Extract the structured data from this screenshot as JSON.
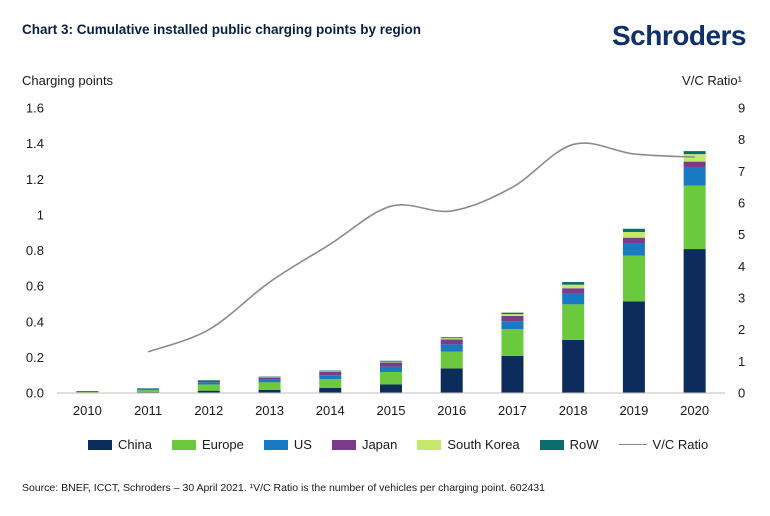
{
  "header": {
    "title": "Chart 3: Cumulative installed public charging points by region",
    "brand": "Schroders"
  },
  "source": "Source: BNEF, ICCT, Schroders – 30 April 2021. ¹V/C Ratio is the number of vehicles per charging point. 602431",
  "chart_data": {
    "type": "bar",
    "stacked": true,
    "ylabel": "Charging points",
    "y2label": "V/C Ratio¹",
    "ylim": [
      0,
      1.6
    ],
    "y2lim": [
      0,
      9
    ],
    "y_ticks": [
      "0.0",
      "0.2",
      "0.4",
      "0.6",
      "0.8",
      "1",
      "1.2",
      "1.4",
      "1.6"
    ],
    "y2_ticks": [
      "0",
      "1",
      "2",
      "3",
      "4",
      "5",
      "6",
      "7",
      "8",
      "9"
    ],
    "categories": [
      "2010",
      "2011",
      "2012",
      "2013",
      "2014",
      "2015",
      "2016",
      "2017",
      "2018",
      "2019",
      "2020"
    ],
    "series": [
      {
        "name": "China",
        "color": "#0c2c5c",
        "values": [
          0.002,
          0.005,
          0.013,
          0.018,
          0.028,
          0.048,
          0.138,
          0.208,
          0.298,
          0.514,
          0.808
        ]
      },
      {
        "name": "Europe",
        "color": "#6ac93c",
        "values": [
          0.006,
          0.011,
          0.035,
          0.042,
          0.05,
          0.07,
          0.095,
          0.15,
          0.2,
          0.258,
          0.356
        ]
      },
      {
        "name": "US",
        "color": "#1a7ac1",
        "values": [
          0.002,
          0.006,
          0.012,
          0.015,
          0.022,
          0.03,
          0.04,
          0.045,
          0.06,
          0.07,
          0.105
        ]
      },
      {
        "name": "Japan",
        "color": "#7b3b8c",
        "values": [
          0.001,
          0.003,
          0.01,
          0.012,
          0.02,
          0.023,
          0.028,
          0.03,
          0.03,
          0.03,
          0.03
        ]
      },
      {
        "name": "South Korea",
        "color": "#c5e86c",
        "values": [
          0.0,
          0.0,
          0.001,
          0.002,
          0.003,
          0.005,
          0.007,
          0.01,
          0.02,
          0.032,
          0.042
        ]
      },
      {
        "name": "RoW",
        "color": "#0b6e6a",
        "values": [
          0.0,
          0.001,
          0.002,
          0.003,
          0.003,
          0.005,
          0.005,
          0.008,
          0.015,
          0.018,
          0.017
        ]
      }
    ],
    "line": {
      "name": "V/C Ratio",
      "color": "#8a8a96",
      "axis": "right",
      "values": [
        null,
        1.3,
        2.0,
        3.5,
        4.7,
        5.9,
        5.75,
        6.5,
        7.85,
        7.55,
        7.45
      ]
    },
    "grid": false,
    "legend": "bottom"
  }
}
